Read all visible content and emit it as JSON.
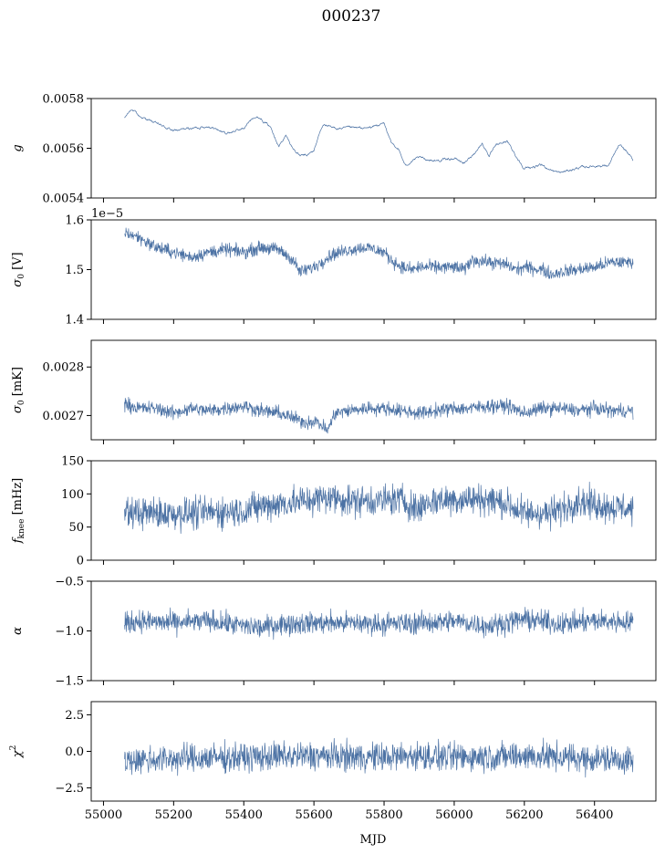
{
  "figure": {
    "title": "000237",
    "xlabel": "MJD",
    "series_color": "#4c72a4"
  },
  "chart_data": [
    {
      "type": "line",
      "ylabel": "g",
      "ylabel_html": "<tspan font-style='italic'>g</tspan>",
      "ylim": [
        0.0054,
        0.0058
      ],
      "yticks": [
        0.0054,
        0.0056,
        0.0058
      ],
      "ytick_labels": [
        "0.0054",
        "0.0056",
        "0.0058"
      ],
      "offset_text": "",
      "xlim": [
        54965,
        56575
      ],
      "series": [
        {
          "x": [
            55060,
            55080,
            55100,
            55150,
            55200,
            55250,
            55300,
            55350,
            55400,
            55430,
            55450,
            55480,
            55500,
            55520,
            55540,
            55560,
            55580,
            55600,
            55615,
            55630,
            55650,
            55700,
            55750,
            55800,
            55820,
            55840,
            55860,
            55880,
            55900,
            55950,
            56000,
            56030,
            56050,
            56080,
            56100,
            56120,
            56150,
            56180,
            56200,
            56250,
            56300,
            56350,
            56400,
            56440,
            56470,
            56490,
            56510
          ],
          "y": [
            0.00572,
            0.00576,
            0.00573,
            0.0057,
            0.00567,
            0.00568,
            0.00569,
            0.00566,
            0.00568,
            0.00573,
            0.00572,
            0.00568,
            0.00561,
            0.00565,
            0.0056,
            0.00557,
            0.00557,
            0.00559,
            0.00566,
            0.0057,
            0.00568,
            0.00568,
            0.00568,
            0.0057,
            0.00562,
            0.0056,
            0.00553,
            0.00555,
            0.00556,
            0.00555,
            0.00556,
            0.00554,
            0.00557,
            0.00562,
            0.00557,
            0.00561,
            0.00563,
            0.00556,
            0.00552,
            0.00553,
            0.0055,
            0.00552,
            0.00553,
            0.00553,
            0.00561,
            0.00559,
            0.00555
          ],
          "noise": 6e-06
        }
      ]
    },
    {
      "type": "line",
      "ylabel": "σ0 [V]",
      "ylabel_html": "<tspan font-style='italic'>σ</tspan><tspan font-size='9' dy='3'>0</tspan><tspan dy='-3'> [V]</tspan>",
      "ylim": [
        1.4,
        1.6
      ],
      "yticks": [
        1.4,
        1.5,
        1.6
      ],
      "ytick_labels": [
        "1.4",
        "1.5",
        "1.6"
      ],
      "offset_text": "1e−5",
      "xlim": [
        54965,
        56575
      ],
      "series": [
        {
          "x": [
            55060,
            55100,
            55150,
            55200,
            55250,
            55300,
            55350,
            55400,
            55450,
            55500,
            55540,
            55560,
            55600,
            55650,
            55700,
            55750,
            55800,
            55820,
            55850,
            55880,
            55900,
            55950,
            56000,
            56030,
            56050,
            56100,
            56150,
            56180,
            56200,
            56250,
            56280,
            56300,
            56350,
            56400,
            56450,
            56480,
            56510
          ],
          "y": [
            1.575,
            1.565,
            1.545,
            1.535,
            1.525,
            1.535,
            1.54,
            1.535,
            1.545,
            1.54,
            1.52,
            1.495,
            1.505,
            1.53,
            1.54,
            1.545,
            1.535,
            1.52,
            1.505,
            1.5,
            1.505,
            1.505,
            1.505,
            1.5,
            1.52,
            1.515,
            1.51,
            1.5,
            1.505,
            1.5,
            1.49,
            1.495,
            1.5,
            1.505,
            1.515,
            1.515,
            1.515
          ],
          "noise": 0.012
        }
      ]
    },
    {
      "type": "line",
      "ylabel": "σ0 [mK]",
      "ylabel_html": "<tspan font-style='italic'>σ</tspan><tspan font-size='9' dy='3'>0</tspan><tspan dy='-3'> [mK]</tspan>",
      "ylim": [
        0.00265,
        0.002855
      ],
      "yticks": [
        0.0027,
        0.0028
      ],
      "ytick_labels": [
        "0.0027",
        "0.0028"
      ],
      "offset_text": "",
      "xlim": [
        54965,
        56575
      ],
      "series": [
        {
          "x": [
            55060,
            55100,
            55150,
            55200,
            55250,
            55300,
            55350,
            55400,
            55450,
            55500,
            55540,
            55580,
            55600,
            55620,
            55640,
            55660,
            55700,
            55750,
            55800,
            55850,
            55900,
            55950,
            56000,
            56050,
            56100,
            56150,
            56200,
            56250,
            56300,
            56350,
            56400,
            56450,
            56510
          ],
          "y": [
            0.002725,
            0.002715,
            0.002715,
            0.002705,
            0.002715,
            0.00271,
            0.002715,
            0.00272,
            0.00271,
            0.002705,
            0.002695,
            0.002685,
            0.00269,
            0.00268,
            0.00267,
            0.002705,
            0.00271,
            0.002715,
            0.002715,
            0.00271,
            0.002705,
            0.00271,
            0.002715,
            0.002715,
            0.00272,
            0.00272,
            0.002705,
            0.002715,
            0.002715,
            0.00271,
            0.002715,
            0.00271,
            0.00271
          ],
          "noise": 1.3e-05
        }
      ]
    },
    {
      "type": "line",
      "ylabel": "fknee [mHz]",
      "ylabel_html": "<tspan font-style='italic'>f</tspan><tspan font-size='9' dy='3'>knee</tspan><tspan dy='-3'> [mHz]</tspan>",
      "ylim": [
        0,
        150
      ],
      "yticks": [
        0,
        50,
        100,
        150
      ],
      "ytick_labels": [
        "0",
        "50",
        "100",
        "150"
      ],
      "offset_text": "",
      "xlim": [
        54965,
        56575
      ],
      "series": [
        {
          "x": [
            55060,
            55100,
            55200,
            55300,
            55400,
            55450,
            55500,
            55550,
            55600,
            55650,
            55700,
            55800,
            55850,
            55900,
            55910,
            55950,
            56000,
            56100,
            56150,
            56200,
            56250,
            56270,
            56300,
            56350,
            56400,
            56450,
            56510
          ],
          "y": [
            70,
            72,
            70,
            72,
            75,
            82,
            85,
            88,
            92,
            95,
            90,
            90,
            92,
            75,
            85,
            90,
            92,
            92,
            85,
            70,
            72,
            70,
            75,
            90,
            85,
            80,
            78
          ],
          "noise": 22
        }
      ]
    },
    {
      "type": "line",
      "ylabel": "α",
      "ylabel_html": "<tspan font-style='italic'>α</tspan>",
      "ylim": [
        -1.5,
        -0.5
      ],
      "yticks": [
        -1.5,
        -1.0,
        -0.5
      ],
      "ytick_labels": [
        "−1.5",
        "−1.0",
        "−0.5"
      ],
      "offset_text": "",
      "xlim": [
        54965,
        56575
      ],
      "series": [
        {
          "x": [
            55060,
            55100,
            55200,
            55300,
            55400,
            55450,
            55500,
            55600,
            55700,
            55800,
            55900,
            56000,
            56100,
            56200,
            56300,
            56400,
            56510
          ],
          "y": [
            -0.93,
            -0.9,
            -0.92,
            -0.9,
            -0.95,
            -0.97,
            -0.93,
            -0.92,
            -0.92,
            -0.93,
            -0.92,
            -0.9,
            -0.95,
            -0.88,
            -0.93,
            -0.9,
            -0.91
          ],
          "noise": 0.1
        }
      ]
    },
    {
      "type": "line",
      "ylabel": "χ2",
      "ylabel_html": "<tspan font-style='italic'>χ</tspan><tspan font-size='9' dy='-6'>2</tspan>",
      "ylim": [
        -3.4,
        3.4
      ],
      "yticks": [
        -2.5,
        0.0,
        2.5
      ],
      "ytick_labels": [
        "−2.5",
        "0.0",
        "2.5"
      ],
      "offset_text": "",
      "xlim": [
        54965,
        56575
      ],
      "series": [
        {
          "x": [
            55060,
            55200,
            55400,
            55600,
            55800,
            55900,
            56000,
            56200,
            56400,
            56510
          ],
          "y": [
            -0.6,
            -0.5,
            -0.4,
            -0.3,
            -0.4,
            -0.3,
            -0.4,
            -0.3,
            -0.5,
            -0.6
          ],
          "noise": 0.9
        }
      ]
    }
  ],
  "xaxis": {
    "ticks": [
      55000,
      55200,
      55400,
      55600,
      55800,
      56000,
      56200,
      56400
    ],
    "tick_labels": [
      "55000",
      "55200",
      "55400",
      "55600",
      "55800",
      "56000",
      "56200",
      "56400"
    ]
  }
}
